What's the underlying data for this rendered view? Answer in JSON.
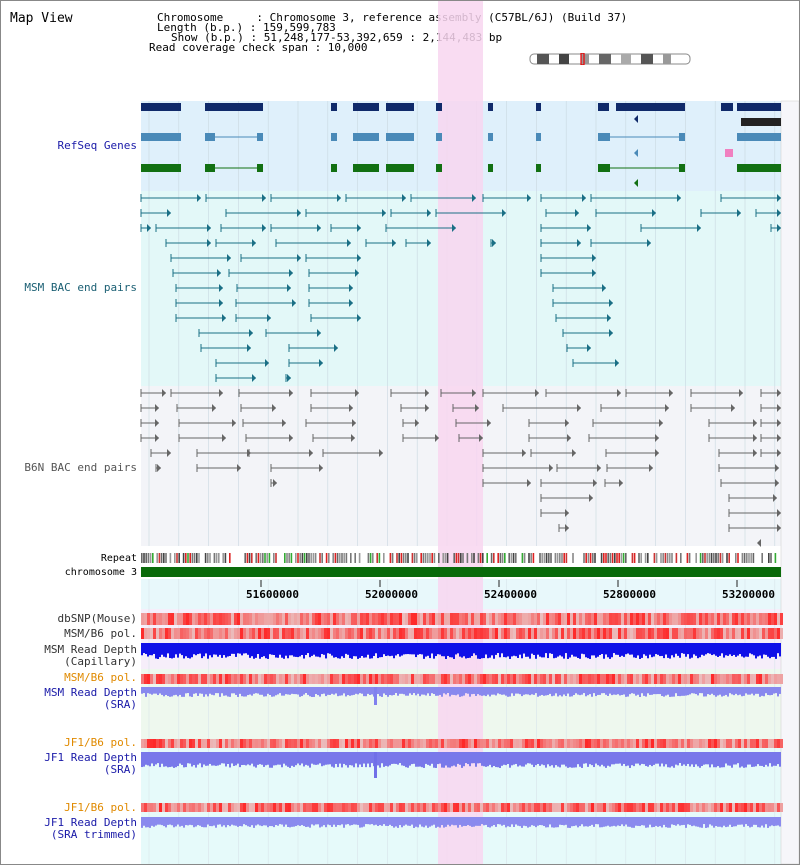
{
  "title": "Map View",
  "header": {
    "chromosome": "Chromosome     : Chromosome 3, reference assembly (C57BL/6J) (Build 37)",
    "length": "Length (b.p.) : 159,599,783",
    "show": "Show (b.p.) : 51,248,177-53,392,659 : 2,144,483 bp",
    "coverage": "Read coverage check span : 10,000"
  },
  "tracks": {
    "refseq": "RefSeq Genes",
    "msm_bac": "MSM BAC end pairs",
    "b6n_bac": "B6N BAC end pairs",
    "repeat": "Repeat",
    "chromosome": "chromosome 3",
    "dbsnp": "dbSNP(Mouse)",
    "msm_b6_pol": "MSM/B6 pol.",
    "msm_depth_cap_1": "MSM Read Depth",
    "msm_depth_cap_2": "(Capillary)",
    "msm_b6_pol2": "MSM/B6 pol.",
    "msm_depth_sra_1": "MSM Read Depth",
    "msm_depth_sra_2": "(SRA)",
    "jf1_pol": "JF1/B6 pol.",
    "jf1_depth_1": "JF1 Read Depth",
    "jf1_depth_2": "(SRA)",
    "jf1_pol2": "JF1/B6 pol.",
    "jf1_trim_1": "JF1 Read Depth",
    "jf1_trim_2": "(SRA trimmed)"
  },
  "axis": {
    "ticks": [
      "51600000",
      "52000000",
      "52400000",
      "52800000",
      "53200000"
    ]
  },
  "colors": {
    "refseq_bg": "#dff0fb",
    "msm_bg": "#e3f8f8",
    "b6n_bg": "#f3f4f8",
    "highlight": "#f8d6f0",
    "label_blue": "#1a1aa8",
    "label_teal": "#1a5f73",
    "label_orange": "#e08a00",
    "gene_navy": "#102a6a",
    "gene_steel": "#4a8ab8",
    "gene_green": "#127012",
    "chrom_green": "#0a6a0a"
  }
}
